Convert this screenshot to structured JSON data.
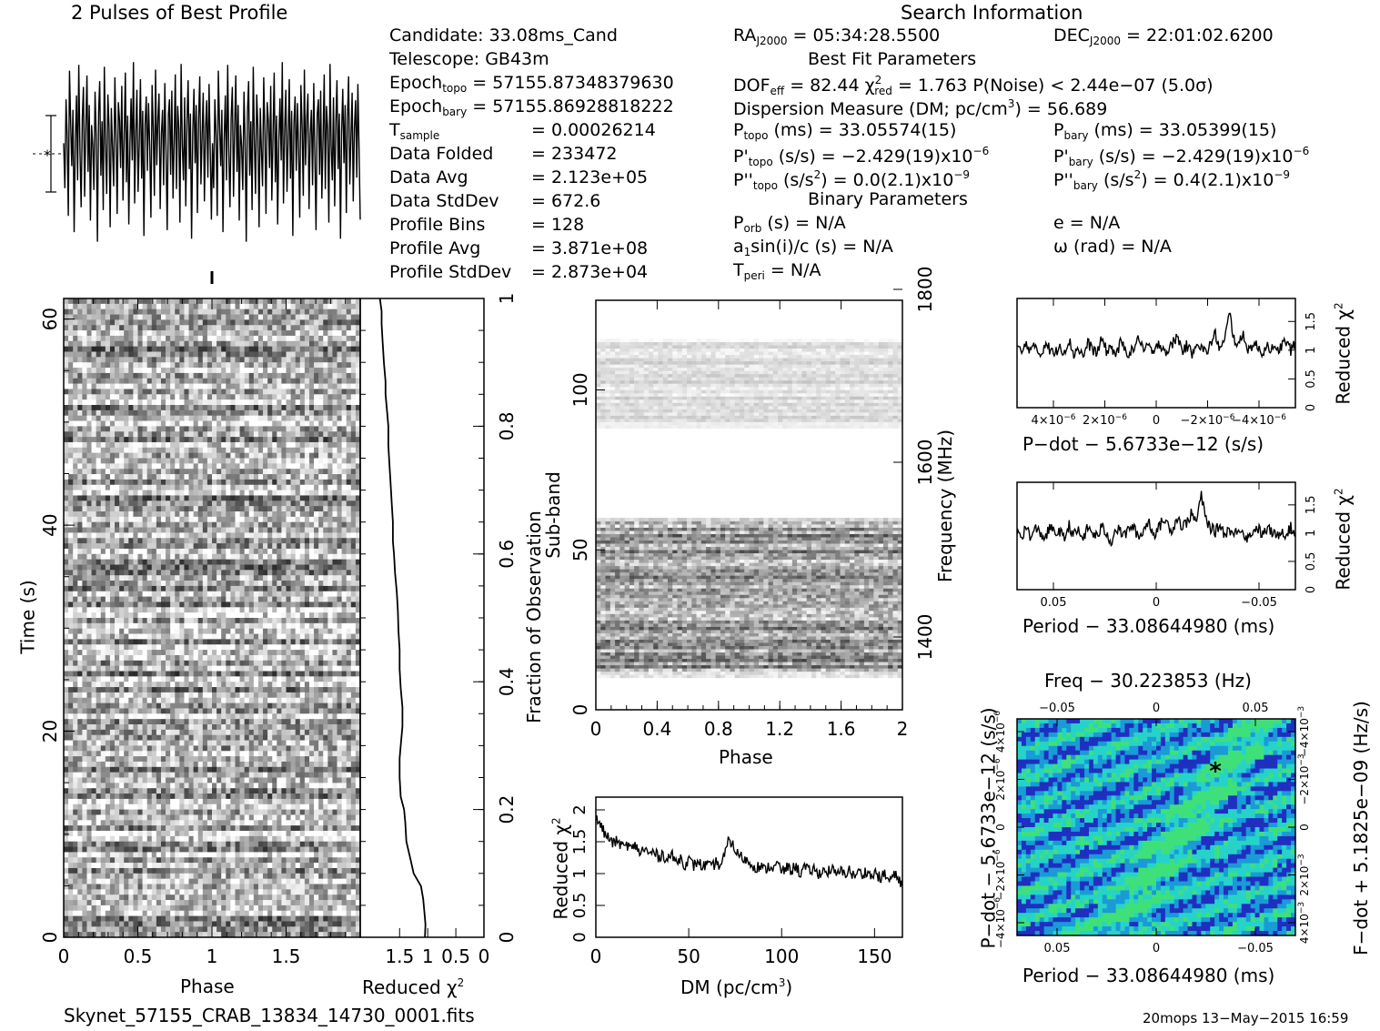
{
  "header": {
    "profile_title": "2 Pulses of Best Profile",
    "search_title": "Search Information",
    "best_fit_title": "Best Fit Parameters",
    "binary_title": "Binary Parameters"
  },
  "candidate": {
    "candidate": "Candidate:  33.08ms_Cand",
    "telescope": "Telescope:  GB43m",
    "epoch_topo_label": "Epoch",
    "epoch_topo_sub": "topo",
    "epoch_topo_value": " = 57155.87348379630",
    "epoch_bary_label": "Epoch",
    "epoch_bary_sub": "bary",
    "epoch_bary_value": " = 57155.86928818222",
    "rows": [
      {
        "label": "T",
        "sub": "sample",
        "value": "=   0.00026214"
      },
      {
        "label": "Data Folded",
        "sub": "",
        "value": "=   233472"
      },
      {
        "label": "Data Avg",
        "sub": "",
        "value": "=   2.123e+05"
      },
      {
        "label": "Data StdDev",
        "sub": "",
        "value": "=   672.6"
      },
      {
        "label": "Profile Bins",
        "sub": "",
        "value": "=   128"
      },
      {
        "label": "Profile Avg",
        "sub": "",
        "value": "=   3.871e+08"
      },
      {
        "label": "Profile StdDev",
        "sub": "",
        "value": "=   2.873e+04"
      }
    ]
  },
  "search": {
    "ra_label": "RA",
    "ra_sub": "J2000",
    "ra_value": " = 05:34:28.5500",
    "dec_label": "DEC",
    "dec_sub": "J2000",
    "dec_value": " = 22:01:02.6200",
    "dof_label": "DOF",
    "dof_sub": "eff",
    "dof_value": " = 82.44  χ",
    "chi_sup": "2",
    "chi_sub": "red",
    "chi_value": " = 1.763  P(Noise) < 2.44e−07  (5.0σ)",
    "dm_text": "Dispersion Measure (DM; pc/cm",
    "dm_sup": "3",
    "dm_value": ") = 56.689",
    "ptopo_label": "P",
    "ptopo_sub": "topo",
    "ptopo_value": " (ms) =  33.05574(15)",
    "pbary_label": "P",
    "pbary_sub": "bary",
    "pbary_value": " (ms) =  33.05399(15)",
    "pdtopo_label": "P'",
    "pdtopo_sub": "topo",
    "pdtopo_value": " (s/s) = −2.429(19)x10",
    "pdtopo_exp": "−6",
    "pdbary_label": "P'",
    "pdbary_sub": "bary",
    "pdbary_value": " (s/s) = −2.429(19)x10",
    "pdbary_exp": "−6",
    "pddtopo_label": "P''",
    "pddtopo_sub": "topo",
    "pddtopo_value": " (s/s",
    "pddtopo_sq": "2",
    "pddtopo_value2": ") = 0.0(2.1)x10",
    "pddtopo_exp": "−9",
    "pddbary_label": "P''",
    "pddbary_sub": "bary",
    "pddbary_value": " (s/s",
    "pddbary_sq": "2",
    "pddbary_value2": ") =  0.4(2.1)x10",
    "pddbary_exp": "−9",
    "porb_label": "P",
    "porb_sub": "orb",
    "porb_value": " (s) = N/A",
    "a1_label": "a",
    "a1_sub": "1",
    "a1_value": "sin(i)/c (s) = N/A",
    "tperi_label": "T",
    "tperi_sub": "peri",
    "tperi_value": " = N/A",
    "e_value": "e = N/A",
    "omega_value": "ω (rad) = N/A"
  },
  "footer": {
    "filename": "Skynet_57155_CRAB_13834_14730_0001.fits",
    "stamp": "20mops 13−May−2015 16:59"
  },
  "chart_data": [
    {
      "id": "profile",
      "type": "line",
      "title": "2 Pulses of Best Profile",
      "x_range": [
        0,
        2
      ],
      "n_bins": 256,
      "note_values": "noise-like profile, two identical pulses of 128 bins",
      "values": [
        0.12,
        -0.35,
        0.58,
        0.21,
        -0.64,
        0.88,
        0.33,
        -0.12,
        0.47,
        -0.81,
        0.15,
        0.62,
        -0.27,
        0.94,
        0.05,
        -0.55,
        0.39,
        0.71,
        -0.44,
        0.26,
        0.83,
        -0.18,
        0.52,
        -0.69,
        0.31,
        0.09,
        -0.37,
        0.66,
        0.18,
        -0.91,
        0.44,
        0.77,
        -0.22,
        0.35,
        -0.58,
        0.92,
        0.11,
        -0.41,
        0.63,
        0.28,
        -0.76,
        0.49,
        0.07,
        -0.33,
        0.81,
        0.22,
        -0.62,
        0.55,
        0.36,
        -0.14,
        0.72,
        -0.48,
        0.19,
        0.86,
        -0.29,
        0.41,
        -0.73,
        0.14,
        0.59,
        -0.06,
        0.97,
        -0.51,
        0.25,
        0.68,
        -0.39,
        0.13,
        0.79,
        -0.25,
        0.46,
        -0.85,
        0.32,
        0.61,
        -0.17,
        0.54,
        0.08,
        -0.66,
        0.73,
        0.29,
        -0.43,
        0.89,
        -0.11,
        0.38,
        0.64,
        -0.57,
        0.21,
        0.47,
        -0.32,
        0.75,
        0.03,
        -0.79,
        0.42,
        0.58,
        -0.21,
        0.67,
        -0.46,
        0.16,
        0.84,
        -0.36,
        0.51,
        0.26,
        -0.71,
        0.95,
        0.1,
        -0.27,
        0.6,
        -0.54,
        0.34,
        0.78,
        -0.15,
        0.43,
        -0.88,
        0.23,
        0.69,
        -0.09,
        0.52,
        -0.61,
        0.37,
        0.82,
        -0.31,
        0.18,
        0.65,
        -0.49,
        0.28,
        0.57,
        -0.24,
        0.74,
        0.06,
        -0.68
      ]
    },
    {
      "id": "time_phase",
      "type": "heatmap",
      "xlabel": "Phase",
      "ylabel": "Time (s)",
      "x_ticks": [
        "0",
        "0.5",
        "1",
        "1.5"
      ],
      "y_ticks": [
        "0",
        "20",
        "40",
        "60"
      ],
      "xlim": [
        0,
        2
      ],
      "ylim": [
        0,
        62
      ],
      "rows": 120,
      "cols": 64,
      "colormap": "gray"
    },
    {
      "id": "time_chi2",
      "type": "line",
      "xlabel": "Reduced χ",
      "xlabel_sup": "2",
      "x_ticks": [
        "1.5",
        "1",
        "0.5",
        "0"
      ],
      "xlim": [
        2.2,
        0
      ],
      "ylabel_right": "Fraction of Observation",
      "y_ticks": [
        "0",
        "0.2",
        "0.4",
        "0.6",
        "0.8",
        "1"
      ],
      "ylim": [
        0,
        1
      ],
      "points": [
        [
          1.05,
          0.0
        ],
        [
          1.04,
          0.02
        ],
        [
          1.06,
          0.04
        ],
        [
          1.08,
          0.06
        ],
        [
          1.12,
          0.08
        ],
        [
          1.25,
          0.1
        ],
        [
          1.3,
          0.12
        ],
        [
          1.38,
          0.15
        ],
        [
          1.4,
          0.18
        ],
        [
          1.42,
          0.2
        ],
        [
          1.48,
          0.22
        ],
        [
          1.5,
          0.25
        ],
        [
          1.5,
          0.28
        ],
        [
          1.48,
          0.3
        ],
        [
          1.45,
          0.33
        ],
        [
          1.45,
          0.36
        ],
        [
          1.48,
          0.39
        ],
        [
          1.5,
          0.42
        ],
        [
          1.5,
          0.45
        ],
        [
          1.52,
          0.48
        ],
        [
          1.53,
          0.51
        ],
        [
          1.55,
          0.54
        ],
        [
          1.58,
          0.57
        ],
        [
          1.6,
          0.6
        ],
        [
          1.62,
          0.62
        ],
        [
          1.62,
          0.65
        ],
        [
          1.64,
          0.68
        ],
        [
          1.66,
          0.71
        ],
        [
          1.68,
          0.74
        ],
        [
          1.7,
          0.77
        ],
        [
          1.7,
          0.8
        ],
        [
          1.72,
          0.82
        ],
        [
          1.75,
          0.85
        ],
        [
          1.75,
          0.87
        ],
        [
          1.78,
          0.9
        ],
        [
          1.8,
          0.93
        ],
        [
          1.82,
          0.96
        ],
        [
          1.82,
          0.98
        ],
        [
          1.85,
          1.0
        ]
      ]
    },
    {
      "id": "subband_phase",
      "type": "heatmap",
      "xlabel": "Phase",
      "ylabel": "Sub-band",
      "x_ticks": [
        "0",
        "0.4",
        "0.8",
        "1.2",
        "1.6",
        "2"
      ],
      "y_ticks": [
        "0",
        "50",
        "100"
      ],
      "xlim": [
        0,
        2
      ],
      "ylim": [
        0,
        128
      ],
      "ylabel_right": "Frequency (MHz)",
      "y2_ticks": [
        "1400",
        "1600",
        "1800"
      ],
      "bands": [
        {
          "from": 10,
          "to": 60,
          "shade": "dark"
        },
        {
          "from": 88,
          "to": 116,
          "shade": "light"
        }
      ]
    },
    {
      "id": "dm_chi2",
      "type": "line",
      "xlabel": "DM (pc/cm",
      "xlabel_sup": "3",
      "xlabel_end": ")",
      "ylabel": "Reduced χ",
      "ylabel_sup": "2",
      "x_ticks": [
        "0",
        "50",
        "100",
        "150"
      ],
      "xlim": [
        0,
        165
      ],
      "y_ticks": [
        "0",
        "0.5",
        "1",
        "1.5",
        "2"
      ],
      "ylim": [
        0,
        2.2
      ],
      "values": [
        1.85,
        1.78,
        1.62,
        1.55,
        1.47,
        1.52,
        1.41,
        1.46,
        1.38,
        1.44,
        1.32,
        1.4,
        1.29,
        1.35,
        1.26,
        1.31,
        1.22,
        1.3,
        1.18,
        1.25,
        1.14,
        1.21,
        1.12,
        1.2,
        1.1,
        1.15,
        1.08,
        1.18,
        1.12,
        1.28,
        1.55,
        1.42,
        1.3,
        1.25,
        1.2,
        1.15,
        1.1,
        1.12,
        1.05,
        1.12,
        1.08,
        1.15,
        1.02,
        1.1,
        1.05,
        1.12,
        1.0,
        1.1,
        1.03,
        1.08,
        0.98,
        1.06,
        1.01,
        1.09,
        0.97,
        1.04,
        0.99,
        1.07,
        0.95,
        1.03,
        0.98,
        1.05,
        0.94,
        1.02,
        0.92,
        0.99,
        0.88,
        0.97,
        0.95,
        0.82
      ]
    },
    {
      "id": "pdot_chi2",
      "type": "line",
      "xlabel": "P−dot − 5.6733e−12 (s/s)",
      "ylabel_right": "Reduced χ",
      "ylabel_sup": "2",
      "x_ticks": [
        "4×10",
        "2×10",
        "0",
        "−2×10",
        "−4×10"
      ],
      "x_tick_exp": "−6",
      "y_ticks": [
        "0",
        "0.5",
        "1",
        "1.5"
      ],
      "ylim": [
        0,
        1.9
      ],
      "values": [
        1.05,
        0.95,
        1.12,
        0.98,
        1.08,
        0.9,
        1.15,
        1.0,
        0.92,
        1.1,
        0.97,
        1.18,
        0.93,
        1.05,
        0.88,
        1.12,
        1.02,
        0.95,
        1.2,
        0.98,
        1.06,
        0.91,
        1.14,
        1.0,
        0.94,
        1.08,
        1.22,
        0.96,
        1.1,
        0.89,
        1.15,
        1.03,
        0.97,
        1.12,
        1.25,
        0.99,
        1.08,
        0.93,
        1.16,
        1.05,
        0.95,
        1.1,
        1.28,
        1.02,
        1.15,
        1.65,
        1.2,
        1.08,
        1.3,
        0.98,
        1.12,
        1.05,
        0.95,
        1.1,
        1.02,
        0.96,
        1.08,
        1.15,
        1.0,
        1.1
      ]
    },
    {
      "id": "period_chi2",
      "type": "line",
      "xlabel": "Period − 33.08644980 (ms)",
      "ylabel_right": "Reduced χ",
      "ylabel_sup": "2",
      "x_ticks": [
        "0.05",
        "0",
        "−0.05"
      ],
      "y_ticks": [
        "0",
        "0.5",
        "1",
        "1.5"
      ],
      "ylim": [
        0,
        1.9
      ],
      "values": [
        1.02,
        0.95,
        1.1,
        0.92,
        1.08,
        1.0,
        0.9,
        1.12,
        0.98,
        1.05,
        0.88,
        1.15,
        0.96,
        1.04,
        0.9,
        1.1,
        1.0,
        0.94,
        1.12,
        0.98,
        0.85,
        1.08,
        1.02,
        0.96,
        1.14,
        1.05,
        0.92,
        1.1,
        1.2,
        0.98,
        1.08,
        1.25,
        1.15,
        1.05,
        1.3,
        1.1,
        1.2,
        1.35,
        1.18,
        1.68,
        1.25,
        1.1,
        1.02,
        1.15,
        0.98,
        1.08,
        0.95,
        1.12,
        1.0,
        0.9,
        1.05,
        1.1,
        0.96,
        1.08,
        1.02,
        0.92,
        1.06,
        0.98,
        1.1,
        0.95
      ]
    },
    {
      "id": "ppdot_plane",
      "type": "heatmap",
      "title": "Freq − 30.223853 (Hz)",
      "xlabel": "Period − 33.08644980 (ms)",
      "ylabel": "P−dot − 5.6733e−12 (s/s)",
      "ylabel_right": "F−dot + 5.1825e−09 (Hz/s)",
      "x_ticks": [
        "0.05",
        "0",
        "−0.05"
      ],
      "x_top_ticks": [
        "−0.05",
        "0",
        "0.05"
      ],
      "y_ticks": [
        "4×10",
        "2×10",
        "0",
        "−2×10",
        "−4×10"
      ],
      "y_tick_exp": "−6",
      "y2_ticks": [
        "−4×10",
        "−2×10",
        "0",
        "2×10",
        "4×10"
      ],
      "y2_tick_exp": "−3",
      "colormap": "blue-cyan-green",
      "colors": {
        "deep": "#1f2fc0",
        "mid": "#1a9ad6",
        "cyan": "#27d3c8",
        "green": "#3fe07a"
      }
    }
  ]
}
